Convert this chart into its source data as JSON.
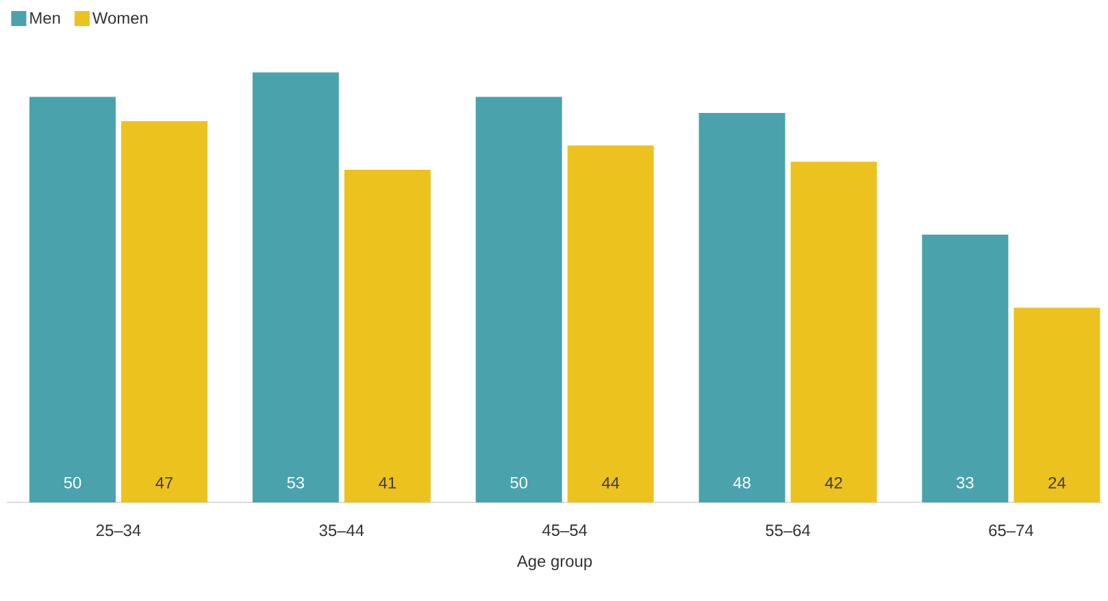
{
  "chart_data": {
    "type": "bar",
    "xlabel": "Age group",
    "categories": [
      "25–34",
      "35–44",
      "45–54",
      "55–64",
      "65–74"
    ],
    "series": [
      {
        "name": "Men",
        "color": "#4aa2ad",
        "values": [
          50,
          53,
          50,
          48,
          33
        ]
      },
      {
        "name": "Women",
        "color": "#ecc21f",
        "values": [
          47,
          41,
          44,
          42,
          24
        ]
      }
    ],
    "data_labels": true,
    "legend": "top left"
  }
}
